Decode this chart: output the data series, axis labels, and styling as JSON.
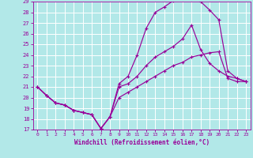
{
  "xlabel": "Windchill (Refroidissement éolien,°C)",
  "bg_color": "#b2e8e8",
  "grid_color": "#ffffff",
  "line_color": "#990099",
  "xlim": [
    -0.5,
    23.5
  ],
  "ylim": [
    17,
    29
  ],
  "xticks": [
    0,
    1,
    2,
    3,
    4,
    5,
    6,
    7,
    8,
    9,
    10,
    11,
    12,
    13,
    14,
    15,
    16,
    17,
    18,
    19,
    20,
    21,
    22,
    23
  ],
  "yticks": [
    17,
    18,
    19,
    20,
    21,
    22,
    23,
    24,
    25,
    26,
    27,
    28,
    29
  ],
  "line1_x": [
    0,
    1,
    2,
    3,
    4,
    5,
    6,
    7,
    8,
    9,
    10,
    11,
    12,
    13,
    14,
    15,
    16,
    17,
    18,
    19,
    20,
    21,
    22,
    23
  ],
  "line1_y": [
    21.0,
    20.2,
    19.5,
    19.3,
    18.8,
    18.6,
    18.4,
    17.1,
    18.2,
    21.3,
    22.0,
    24.0,
    26.5,
    28.0,
    28.5,
    29.1,
    29.2,
    29.2,
    29.0,
    28.2,
    27.3,
    22.5,
    21.8,
    21.5
  ],
  "line2_x": [
    0,
    1,
    2,
    3,
    4,
    5,
    6,
    7,
    8,
    9,
    10,
    11,
    12,
    13,
    14,
    15,
    16,
    17,
    18,
    19,
    20,
    21,
    22,
    23
  ],
  "line2_y": [
    21.0,
    20.2,
    19.5,
    19.3,
    18.8,
    18.6,
    18.4,
    17.1,
    18.2,
    21.0,
    21.3,
    22.0,
    23.0,
    23.8,
    24.3,
    24.8,
    25.5,
    26.8,
    24.5,
    23.2,
    22.5,
    22.0,
    21.8,
    21.5
  ],
  "line3_x": [
    0,
    1,
    2,
    3,
    4,
    5,
    6,
    7,
    8,
    9,
    10,
    11,
    12,
    13,
    14,
    15,
    16,
    17,
    18,
    19,
    20,
    21,
    22,
    23
  ],
  "line3_y": [
    21.0,
    20.2,
    19.5,
    19.3,
    18.8,
    18.6,
    18.4,
    17.1,
    18.2,
    20.0,
    20.5,
    21.0,
    21.5,
    22.0,
    22.5,
    23.0,
    23.3,
    23.8,
    24.0,
    24.2,
    24.3,
    21.8,
    21.5,
    21.5
  ]
}
